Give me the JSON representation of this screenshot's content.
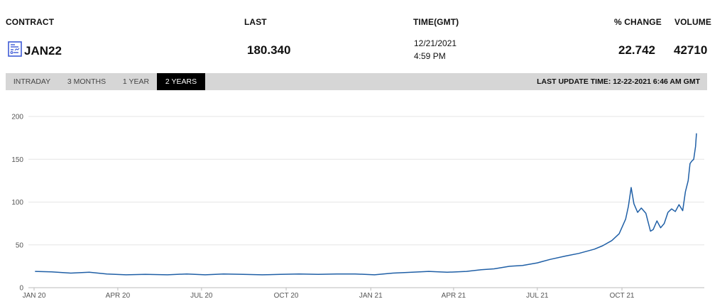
{
  "header": {
    "contract_label": "CONTRACT",
    "last_label": "LAST",
    "time_label": "TIME(GMT)",
    "change_label": "% CHANGE",
    "volume_label": "VOLUME"
  },
  "quote": {
    "contract": "JAN22",
    "last": "180.340",
    "date": "12/21/2021",
    "time": "4:59 PM",
    "change": "22.742",
    "volume": "42710"
  },
  "tabs": [
    {
      "label": "INTRADAY",
      "active": false
    },
    {
      "label": "3 MONTHS",
      "active": false
    },
    {
      "label": "1 YEAR",
      "active": false
    },
    {
      "label": "2 YEARS",
      "active": true
    }
  ],
  "last_update": "LAST UPDATE TIME: 12-22-2021 6:46 AM GMT",
  "colors": {
    "line": "#1f5fa6",
    "tab_bar": "#d6d6d6",
    "tab_active": "#000000",
    "icon": "#3f5bd6"
  },
  "chart_data": {
    "type": "line",
    "x_labels": [
      "JAN 20",
      "APR 20",
      "JUL 20",
      "OCT 20",
      "JAN 21",
      "APR 21",
      "JUL 21",
      "OCT 21"
    ],
    "y_ticks": [
      "0",
      "50",
      "100",
      "150",
      "200"
    ],
    "ylim": [
      0,
      200
    ],
    "grid": true,
    "series": [
      {
        "x": [
          "2020-01-02",
          "2020-01-20",
          "2020-02-10",
          "2020-03-01",
          "2020-03-20",
          "2020-04-10",
          "2020-05-01",
          "2020-05-25",
          "2020-06-15",
          "2020-07-05",
          "2020-07-25",
          "2020-08-15",
          "2020-09-05",
          "2020-09-25",
          "2020-10-15",
          "2020-11-05",
          "2020-11-25",
          "2020-12-15",
          "2021-01-05",
          "2021-01-25",
          "2021-02-15",
          "2021-03-05",
          "2021-03-25",
          "2021-04-15",
          "2021-05-01",
          "2021-05-15",
          "2021-06-01",
          "2021-06-15",
          "2021-07-01",
          "2021-07-15",
          "2021-08-01",
          "2021-08-15",
          "2021-09-01",
          "2021-09-10",
          "2021-09-20",
          "2021-09-28",
          "2021-10-05",
          "2021-10-08",
          "2021-10-11",
          "2021-10-14",
          "2021-10-18",
          "2021-10-22",
          "2021-10-27",
          "2021-11-01",
          "2021-11-04",
          "2021-11-08",
          "2021-11-12",
          "2021-11-16",
          "2021-11-20",
          "2021-11-24",
          "2021-11-28",
          "2021-12-02",
          "2021-12-06",
          "2021-12-09",
          "2021-12-12",
          "2021-12-14",
          "2021-12-16",
          "2021-12-18",
          "2021-12-20",
          "2021-12-21"
        ],
        "y": [
          19,
          18.5,
          17,
          18,
          16,
          15,
          15.5,
          15,
          16,
          15,
          16,
          15.5,
          15,
          15.5,
          16,
          15.5,
          16,
          16,
          15,
          17,
          18,
          19,
          18,
          19,
          21,
          22,
          25,
          26,
          29,
          33,
          37,
          40,
          45,
          49,
          55,
          63,
          80,
          95,
          117,
          98,
          88,
          93,
          87,
          66,
          68,
          78,
          70,
          75,
          88,
          92,
          89,
          97,
          90,
          112,
          125,
          145,
          148,
          150,
          165,
          180.34
        ]
      }
    ]
  }
}
